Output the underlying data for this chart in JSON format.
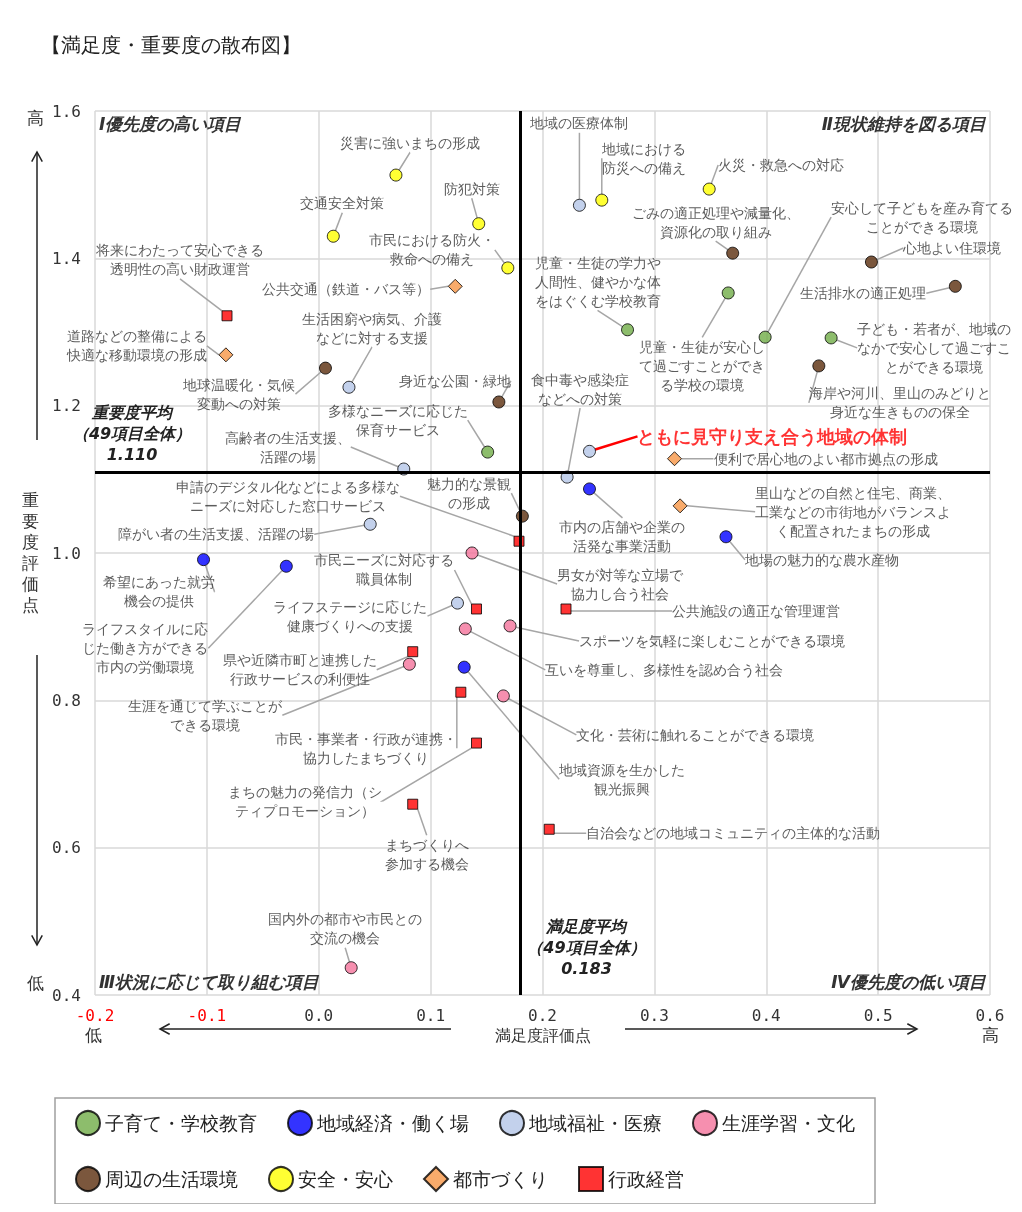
{
  "chart_data": {
    "type": "scatter",
    "title": "【満足度・重要度の散布図】",
    "xlabel": "満足度評価点",
    "ylabel": "重要度評価点",
    "xlim": [
      -0.2,
      0.6
    ],
    "xticks": [
      -0.2,
      -0.1,
      {
        "value": 0,
        "label": "0.0"
      },
      0.1,
      0.2,
      0.3,
      0.4,
      0.5,
      0.6
    ],
    "ylim": [
      0.4,
      1.6
    ],
    "yticks": [
      0.4,
      0.6,
      0.8,
      {
        "value": 1,
        "label": "1.0"
      },
      1.2,
      1.4,
      1.6
    ],
    "grid": true,
    "legend": "bottom",
    "ref_lines": [
      {
        "axis": "y",
        "value": 1.11,
        "label": "重要度平均（49項目全体）1.110",
        "color": "#000000"
      },
      {
        "axis": "x",
        "value": 0.183,
        "label": "満足度平均（49項目全体）0.183",
        "color": "#000000"
      }
    ],
    "annotations": [
      "Ⅰ優先度の高い項目",
      "Ⅱ現状維持を図る項目",
      "Ⅲ状況に応じて取り組む項目",
      "Ⅳ優先度の低い項目",
      "高",
      "低",
      "低",
      "高"
    ],
    "series": [
      {
        "name": "子育て・学校教育",
        "color": "#70ad47",
        "marker": "circle",
        "x": [
          0.276,
          0.366,
          0.399,
          0.458,
          0.151
        ],
        "values": [
          1.303,
          1.353,
          1.293,
          1.292,
          1.137
        ],
        "value_labels": [
          "児童・生徒の学力や人間性、健やかな体をはぐくむ学校教育",
          "児童・生徒が安心して過ごすことができる学校の環境",
          "安心して子どもを産み育てることができる環境",
          "子ども・若者が、地域のなかで安心して過ごすことができる環境",
          "多様なニーズに応じた保育サービス"
        ]
      },
      {
        "name": "地域経済・働く場",
        "color": "#0000ff",
        "marker": "circle",
        "x": [
          -0.103,
          -0.029,
          0.242,
          0.364,
          0.13
        ],
        "values": [
          0.991,
          0.982,
          1.087,
          1.022,
          0.845
        ],
        "value_labels": [
          "希望にあった就労機会の提供",
          "ライフスタイルに応じた働き方ができる市内の労働環境",
          "市内の店舗や企業の活発な事業活動",
          "地場の魅力的な農水産物",
          "地域資源を生かした観光振興"
        ]
      },
      {
        "name": "地域福祉・医療",
        "color": "#b4c6e7",
        "marker": "circle",
        "x": [
          0.233,
          0.027,
          0.076,
          0.046,
          0.124,
          0.222,
          0.242
        ],
        "values": [
          1.472,
          1.225,
          1.114,
          1.039,
          0.932,
          1.103,
          1.138
        ],
        "value_labels": [
          "地域の医療体制",
          "生活困窮や病気、介護などに対する支援",
          "高齢者の生活支援、活躍の場",
          "障がい者の生活支援、活躍の場",
          "ライフステージに応じた健康づくりへの支援",
          "食中毒や感染症などへの対策",
          "ともに見守り支え合う地域の体制"
        ]
      },
      {
        "name": "生涯学習・文化",
        "color": "#f4739b",
        "marker": "circle",
        "x": [
          0.137,
          0.171,
          0.131,
          0.081,
          0.165,
          0.029
        ],
        "values": [
          1.0,
          0.901,
          0.897,
          0.849,
          0.806,
          0.437
        ],
        "value_labels": [
          "男女が対等な立場で協力し合う社会",
          "スポーツを気軽に楽しむことができる環境",
          "互いを尊重し、多様性を認め合う社会",
          "生涯を通じて学ぶことができる環境",
          "文化・芸術に触れることができる環境",
          "国内外の都市や市民との交流の機会"
        ]
      },
      {
        "name": "周辺の生活環境",
        "color": "#5a2d0c",
        "marker": "circle",
        "x": [
          0.37,
          0.494,
          0.569,
          0.447,
          0.006,
          0.161,
          0.182
        ],
        "values": [
          1.407,
          1.395,
          1.362,
          1.254,
          1.251,
          1.205,
          1.05
        ],
        "value_labels": [
          "ごみの適正処理や減量化、資源化の取り組み",
          "心地よい住環境",
          "生活排水の適正処理",
          "海岸や河川、里山のみどりと身近な生きものの保全",
          "地球温暖化・気候変動への対策",
          "身近な公園・緑地",
          "魅力的な景観の形成"
        ]
      },
      {
        "name": "安全・安心",
        "color": "#ffff00",
        "marker": "circle",
        "x": [
          0.069,
          0.013,
          0.143,
          0.169,
          0.253,
          0.349
        ],
        "values": [
          1.513,
          1.43,
          1.447,
          1.387,
          1.479,
          1.494
        ],
        "value_labels": [
          "災害に強いまちの形成",
          "交通安全対策",
          "防犯対策",
          "市民における防火・救命への備え",
          "地域における防災への備え",
          "火災・救急への対応"
        ]
      },
      {
        "name": "都市づくり",
        "color": "#f79646",
        "marker": "diamond",
        "x": [
          0.122,
          -0.083,
          0.318,
          0.323
        ],
        "values": [
          1.362,
          1.269,
          1.128,
          1.064
        ],
        "value_labels": [
          "公共交通（鉄道・バス等）",
          "道路などの整備による快適な移動環境の形成",
          "便利で居心地のよい都市拠点の形成",
          "里山などの自然と住宅、商業、工業などの市街地がバランスよく配置されたまちの形成"
        ]
      },
      {
        "name": "行政経営",
        "color": "#ff0000",
        "marker": "square",
        "x": [
          -0.082,
          0.179,
          0.141,
          0.221,
          0.084,
          0.127,
          0.141,
          0.084,
          0.206
        ],
        "values": [
          1.322,
          1.016,
          0.924,
          0.924,
          0.866,
          0.811,
          0.742,
          0.659,
          0.625
        ],
        "value_labels": [
          "将来にわたって安心できる透明性の高い財政運営",
          "申請のデジタル化などによる多様なニーズに対応した窓口サービス",
          "市民ニーズに対応する職員体制",
          "公共施設の適正な管理運営",
          "県や近隣市町と連携した行政サービスの利便性",
          "市民・事業者・行政が連携・協力したまちづくり",
          "まちの魅力の発信力（シティプロモーション）",
          "まちづくりへ参加する機会",
          "自治会などの地域コミュニティの主体的な活動"
        ]
      }
    ]
  }
}
